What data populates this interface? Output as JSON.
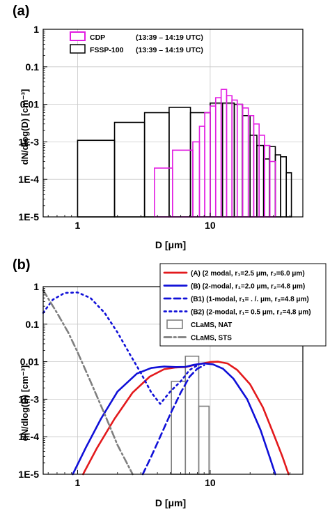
{
  "figure": {
    "panels": [
      {
        "panel_label": "(a)",
        "legend": [
          {
            "label": "CDP",
            "time": "(13:39 – 14:19 UTC)",
            "color": "#e21de2"
          },
          {
            "label": "FSSP-100",
            "time": "(13:39 – 14:19 UTC)",
            "color": "#000000"
          }
        ]
      },
      {
        "panel_label": "(b)",
        "legend": [
          {
            "text": "(A)   (2 modal, r₁=2.5 μm, r₂=6.0 μm)",
            "color": "#e3191c",
            "style": "solid"
          },
          {
            "text": "(B)   (2-modal, r₁=2.0 μm, r₂=4.8 μm)",
            "color": "#1010d8",
            "style": "solid"
          },
          {
            "text": "(B1) (1-modal, r₁= . /. μm, r₂=4.8 μm)",
            "color": "#1010d8",
            "style": "dashed"
          },
          {
            "text": "(B2) (2-modal, r₁= 0.5 μm, r₂=4.8 μm)",
            "color": "#1010d8",
            "style": "dotted"
          },
          {
            "text": "CLaMS, NAT",
            "color": "#7f7f7f",
            "style": "box"
          },
          {
            "text": "CLaMS, STS",
            "color": "#7f7f7f",
            "style": "dashdot"
          }
        ]
      }
    ]
  },
  "chart_data": [
    {
      "type": "bar",
      "subtype": "step-histogram",
      "xlabel": "D [μm]",
      "ylabel": "dN/dlog(D) [cm⁻³]",
      "xscale": "log",
      "yscale": "log",
      "xlim": [
        0.55,
        50
      ],
      "ylim": [
        1e-05,
        1
      ],
      "xticks": [
        {
          "v": 1,
          "label": "1"
        },
        {
          "v": 10,
          "label": "10"
        }
      ],
      "yticks": [
        {
          "v": 1e-05,
          "label": "1E-5"
        },
        {
          "v": 0.0001,
          "label": "1E-4"
        },
        {
          "v": 0.001,
          "label": "1E-3"
        },
        {
          "v": 0.01,
          "label": "0.01"
        },
        {
          "v": 0.1,
          "label": "0.1"
        },
        {
          "v": 1,
          "label": "1"
        }
      ],
      "grid": true,
      "legend_position": "top-left",
      "series": [
        {
          "name": "FSSP-100",
          "color": "#000000",
          "bins": [
            {
              "x0": 1.0,
              "x1": 1.9,
              "y": 0.0011
            },
            {
              "x0": 1.9,
              "x1": 3.2,
              "y": 0.0033
            },
            {
              "x0": 3.2,
              "x1": 4.9,
              "y": 0.006
            },
            {
              "x0": 4.9,
              "x1": 7.1,
              "y": 0.0083
            },
            {
              "x0": 7.1,
              "x1": 10.0,
              "y": 0.006
            },
            {
              "x0": 10.0,
              "x1": 12.4,
              "y": 0.0108
            },
            {
              "x0": 12.4,
              "x1": 15.2,
              "y": 0.0108
            },
            {
              "x0": 15.2,
              "x1": 17.5,
              "y": 0.01
            },
            {
              "x0": 17.5,
              "x1": 20.0,
              "y": 0.005
            },
            {
              "x0": 20.0,
              "x1": 22.5,
              "y": 0.0015
            },
            {
              "x0": 22.5,
              "x1": 25.3,
              "y": 0.0008
            },
            {
              "x0": 25.3,
              "x1": 28.0,
              "y": 0.00035
            },
            {
              "x0": 28.0,
              "x1": 31.0,
              "y": 0.00075
            },
            {
              "x0": 31.0,
              "x1": 34.0,
              "y": 0.00045
            },
            {
              "x0": 34.0,
              "x1": 37.5,
              "y": 0.0004
            },
            {
              "x0": 37.5,
              "x1": 41.0,
              "y": 0.00015
            }
          ]
        },
        {
          "name": "CDP",
          "color": "#e21de2",
          "bins": [
            {
              "x0": 3.8,
              "x1": 5.2,
              "y": 0.0002
            },
            {
              "x0": 5.2,
              "x1": 7.4,
              "y": 0.0006
            },
            {
              "x0": 7.4,
              "x1": 8.3,
              "y": 0.001
            },
            {
              "x0": 8.3,
              "x1": 9.1,
              "y": 0.0026
            },
            {
              "x0": 9.1,
              "x1": 10.0,
              "y": 0.006
            },
            {
              "x0": 10.0,
              "x1": 11.0,
              "y": 0.009
            },
            {
              "x0": 11.0,
              "x1": 12.1,
              "y": 0.015
            },
            {
              "x0": 12.1,
              "x1": 13.3,
              "y": 0.025
            },
            {
              "x0": 13.3,
              "x1": 14.6,
              "y": 0.017
            },
            {
              "x0": 14.6,
              "x1": 16.0,
              "y": 0.013
            },
            {
              "x0": 16.0,
              "x1": 17.6,
              "y": 0.01
            },
            {
              "x0": 17.6,
              "x1": 19.4,
              "y": 0.008
            },
            {
              "x0": 19.4,
              "x1": 21.3,
              "y": 0.005
            },
            {
              "x0": 21.3,
              "x1": 23.4,
              "y": 0.003
            },
            {
              "x0": 23.4,
              "x1": 25.7,
              "y": 0.0015
            },
            {
              "x0": 25.7,
              "x1": 28.2,
              "y": 0.0008
            },
            {
              "x0": 28.2,
              "x1": 31.0,
              "y": 0.0003
            }
          ]
        }
      ]
    },
    {
      "type": "line",
      "xlabel": "D [μm]",
      "ylabel": "dN/dlog(D) [cm⁻³]",
      "xscale": "log",
      "yscale": "log",
      "xlim": [
        0.55,
        50
      ],
      "ylim": [
        1e-05,
        1
      ],
      "xticks": [
        {
          "v": 1,
          "label": "1"
        },
        {
          "v": 10,
          "label": "10"
        }
      ],
      "yticks": [
        {
          "v": 1e-05,
          "label": "1E-5"
        },
        {
          "v": 0.0001,
          "label": "1E-4"
        },
        {
          "v": 0.001,
          "label": "1E-3"
        },
        {
          "v": 0.01,
          "label": "0.01"
        },
        {
          "v": 0.1,
          "label": "0.1"
        },
        {
          "v": 1,
          "label": "1"
        }
      ],
      "grid": true,
      "legend_position": "top-right",
      "series": [
        {
          "name": "(A)",
          "color": "#e3191c",
          "style": "solid",
          "points": [
            [
              1.1,
              1e-05
            ],
            [
              1.4,
              5e-05
            ],
            [
              1.9,
              0.0003
            ],
            [
              2.6,
              0.0015
            ],
            [
              3.5,
              0.004
            ],
            [
              4.5,
              0.0063
            ],
            [
              5.5,
              0.007
            ],
            [
              6.5,
              0.0072
            ],
            [
              8.0,
              0.0085
            ],
            [
              10.0,
              0.0098
            ],
            [
              11.5,
              0.01
            ],
            [
              13.5,
              0.009
            ],
            [
              16.0,
              0.006
            ],
            [
              20.0,
              0.0025
            ],
            [
              25.0,
              0.0006
            ],
            [
              30.0,
              0.00012
            ],
            [
              35.0,
              3e-05
            ],
            [
              39.0,
              1e-05
            ]
          ]
        },
        {
          "name": "(B)",
          "color": "#1010d8",
          "style": "solid",
          "points": [
            [
              0.92,
              1e-05
            ],
            [
              1.15,
              5e-05
            ],
            [
              1.5,
              0.0003
            ],
            [
              2.0,
              0.0016
            ],
            [
              2.8,
              0.0048
            ],
            [
              3.6,
              0.0068
            ],
            [
              4.5,
              0.0074
            ],
            [
              5.5,
              0.0072
            ],
            [
              6.5,
              0.0073
            ],
            [
              7.5,
              0.0082
            ],
            [
              9.0,
              0.009
            ],
            [
              10.5,
              0.0085
            ],
            [
              12.5,
              0.0065
            ],
            [
              15.0,
              0.0035
            ],
            [
              19.0,
              0.001
            ],
            [
              24.0,
              0.00015
            ],
            [
              28.0,
              3e-05
            ],
            [
              31.0,
              1e-05
            ]
          ]
        },
        {
          "name": "(B1)",
          "color": "#1010d8",
          "style": "dashed",
          "points": [
            [
              3.1,
              1e-05
            ],
            [
              3.6,
              3e-05
            ],
            [
              4.2,
              0.0001
            ],
            [
              5.0,
              0.0004
            ],
            [
              6.0,
              0.0015
            ],
            [
              7.0,
              0.004
            ],
            [
              8.0,
              0.0065
            ],
            [
              9.0,
              0.008
            ]
          ]
        },
        {
          "name": "(B2)",
          "color": "#1010d8",
          "style": "dotted",
          "points": [
            [
              0.55,
              0.2
            ],
            [
              0.65,
              0.45
            ],
            [
              0.8,
              0.68
            ],
            [
              1.0,
              0.7
            ],
            [
              1.25,
              0.5
            ],
            [
              1.6,
              0.2
            ],
            [
              2.0,
              0.06
            ],
            [
              2.5,
              0.015
            ],
            [
              3.0,
              0.005
            ],
            [
              3.6,
              0.0015
            ],
            [
              4.2,
              0.00075
            ],
            [
              5.0,
              0.0016
            ],
            [
              6.0,
              0.003
            ],
            [
              7.0,
              0.006
            ],
            [
              8.0,
              0.008
            ]
          ]
        },
        {
          "name": "CLaMS, STS",
          "color": "#7f7f7f",
          "style": "dashdot",
          "points": [
            [
              0.55,
              0.8
            ],
            [
              0.7,
              0.2
            ],
            [
              0.85,
              0.06
            ],
            [
              1.0,
              0.018
            ],
            [
              1.25,
              0.003
            ],
            [
              1.6,
              0.0004
            ],
            [
              2.0,
              6e-05
            ],
            [
              2.6,
              1e-05
            ]
          ]
        }
      ],
      "histogram": {
        "name": "CLaMS, NAT",
        "color": "#7f7f7f",
        "bins": [
          {
            "x0": 5.1,
            "x1": 6.5,
            "y": 0.003
          },
          {
            "x0": 6.5,
            "x1": 8.2,
            "y": 0.014
          },
          {
            "x0": 8.2,
            "x1": 9.8,
            "y": 0.00065
          }
        ]
      }
    }
  ]
}
